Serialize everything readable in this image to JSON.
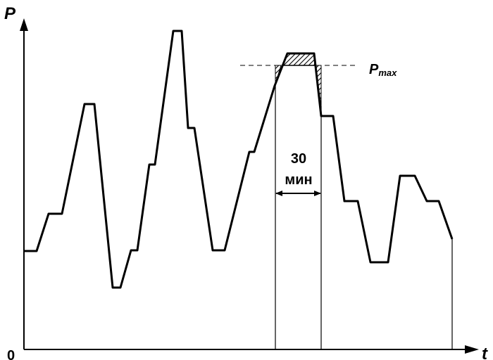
{
  "axes": {
    "y_label": "P",
    "x_label": "t",
    "origin_label": "0"
  },
  "threshold": {
    "label_main": "P",
    "label_sub": "max"
  },
  "interval": {
    "value": "30",
    "unit": "мин"
  },
  "colors": {
    "line": "#000000",
    "background": "#ffffff"
  }
}
